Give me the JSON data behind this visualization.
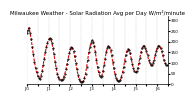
{
  "title": "Milwaukee Weather - Solar Radiation Avg per Day W/m²/minute",
  "line_color": "#dd0000",
  "dot_color": "#000000",
  "bg_color": "#ffffff",
  "grid_color": "#999999",
  "ylim": [
    0,
    320
  ],
  "xlim": [
    0,
    130
  ],
  "y_ticks": [
    0,
    50,
    100,
    150,
    200,
    250,
    300
  ],
  "y_tick_labels": [
    "0",
    "50",
    "100",
    "150",
    "200",
    "250",
    "300"
  ],
  "x_values": [
    0,
    1,
    2,
    3,
    4,
    5,
    6,
    7,
    8,
    9,
    10,
    11,
    12,
    13,
    14,
    15,
    16,
    17,
    18,
    19,
    20,
    21,
    22,
    23,
    24,
    25,
    26,
    27,
    28,
    29,
    30,
    31,
    32,
    33,
    34,
    35,
    36,
    37,
    38,
    39,
    40,
    41,
    42,
    43,
    44,
    45,
    46,
    47,
    48,
    49,
    50,
    51,
    52,
    53,
    54,
    55,
    56,
    57,
    58,
    59,
    60,
    61,
    62,
    63,
    64,
    65,
    66,
    67,
    68,
    69,
    70,
    71,
    72,
    73,
    74,
    75,
    76,
    77,
    78,
    79,
    80,
    81,
    82,
    83,
    84,
    85,
    86,
    87,
    88,
    89,
    90,
    91,
    92,
    93,
    94,
    95,
    96,
    97,
    98,
    99,
    100,
    101,
    102,
    103,
    104,
    105,
    106,
    107,
    108,
    109,
    110,
    111,
    112,
    113,
    114,
    115,
    116,
    117,
    118,
    119,
    120,
    121,
    122,
    123,
    124,
    125,
    126,
    127,
    128,
    129
  ],
  "y_values": [
    240,
    255,
    265,
    240,
    210,
    175,
    140,
    105,
    75,
    55,
    40,
    30,
    25,
    40,
    60,
    90,
    120,
    150,
    175,
    195,
    210,
    215,
    210,
    195,
    170,
    140,
    105,
    75,
    50,
    35,
    25,
    20,
    20,
    25,
    35,
    50,
    70,
    95,
    120,
    145,
    165,
    175,
    170,
    155,
    130,
    100,
    70,
    45,
    25,
    15,
    10,
    10,
    15,
    30,
    50,
    80,
    115,
    150,
    175,
    195,
    205,
    200,
    180,
    150,
    115,
    80,
    55,
    40,
    35,
    40,
    60,
    90,
    120,
    150,
    170,
    180,
    175,
    160,
    135,
    105,
    75,
    50,
    30,
    20,
    15,
    15,
    20,
    35,
    55,
    80,
    110,
    135,
    155,
    165,
    160,
    145,
    120,
    95,
    75,
    60,
    55,
    60,
    75,
    100,
    125,
    150,
    170,
    180,
    180,
    170,
    155,
    135,
    115,
    100,
    90,
    90,
    100,
    115,
    135,
    155,
    170,
    180,
    180,
    170,
    155,
    135,
    115,
    100,
    90,
    90
  ],
  "vgrid_positions": [
    0,
    10,
    20,
    30,
    40,
    50,
    60,
    70,
    80,
    90,
    100,
    110,
    120
  ],
  "x_tick_positions": [
    0,
    10,
    20,
    30,
    40,
    50,
    60,
    70,
    80,
    90,
    100,
    110,
    120,
    130
  ],
  "x_tick_labels": [
    "J'0",
    "",
    "J'1",
    "",
    "J'2",
    "",
    "J'3",
    "",
    "J'4",
    "",
    "J'5",
    "",
    "J'6",
    ""
  ],
  "title_fontsize": 4.0,
  "tick_fontsize": 3.0,
  "linewidth": 0.8,
  "markersize": 1.0
}
